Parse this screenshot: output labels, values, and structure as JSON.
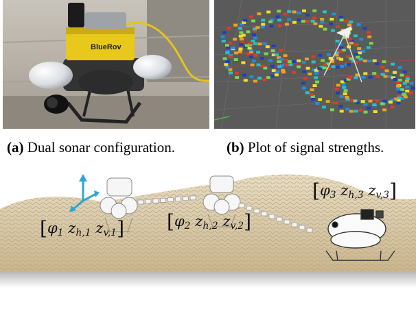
{
  "figure": {
    "panel_a": {
      "tag": "(a)",
      "caption": "Dual sonar configuration.",
      "robot_brand": "BlueRov"
    },
    "panel_b": {
      "tag": "(b)",
      "caption": "Plot of signal strengths."
    },
    "panel_c": {
      "poses": [
        {
          "phi": "φ",
          "phi_sub": "1",
          "zh": "z",
          "zh_sub": "h,1",
          "zv": "z",
          "zv_sub": "v,1"
        },
        {
          "phi": "φ",
          "phi_sub": "2",
          "zh": "z",
          "zh_sub": "h,2",
          "zv": "z",
          "zv_sub": "v,2"
        },
        {
          "phi": "φ",
          "phi_sub": "3",
          "zh": "z",
          "zh_sub": "h,3",
          "zv": "z",
          "zv_sub": "v,3"
        }
      ]
    }
  },
  "colors": {
    "sand": "#d8c9a8",
    "sand_dark": "#b8a67f",
    "rov_yellow": "#e8c91b",
    "plot_bg": "#5a5a5a",
    "axis_cyan": "#2aa7d6"
  },
  "bindings": {
    "bracket_open": "[",
    "bracket_close": "]"
  }
}
